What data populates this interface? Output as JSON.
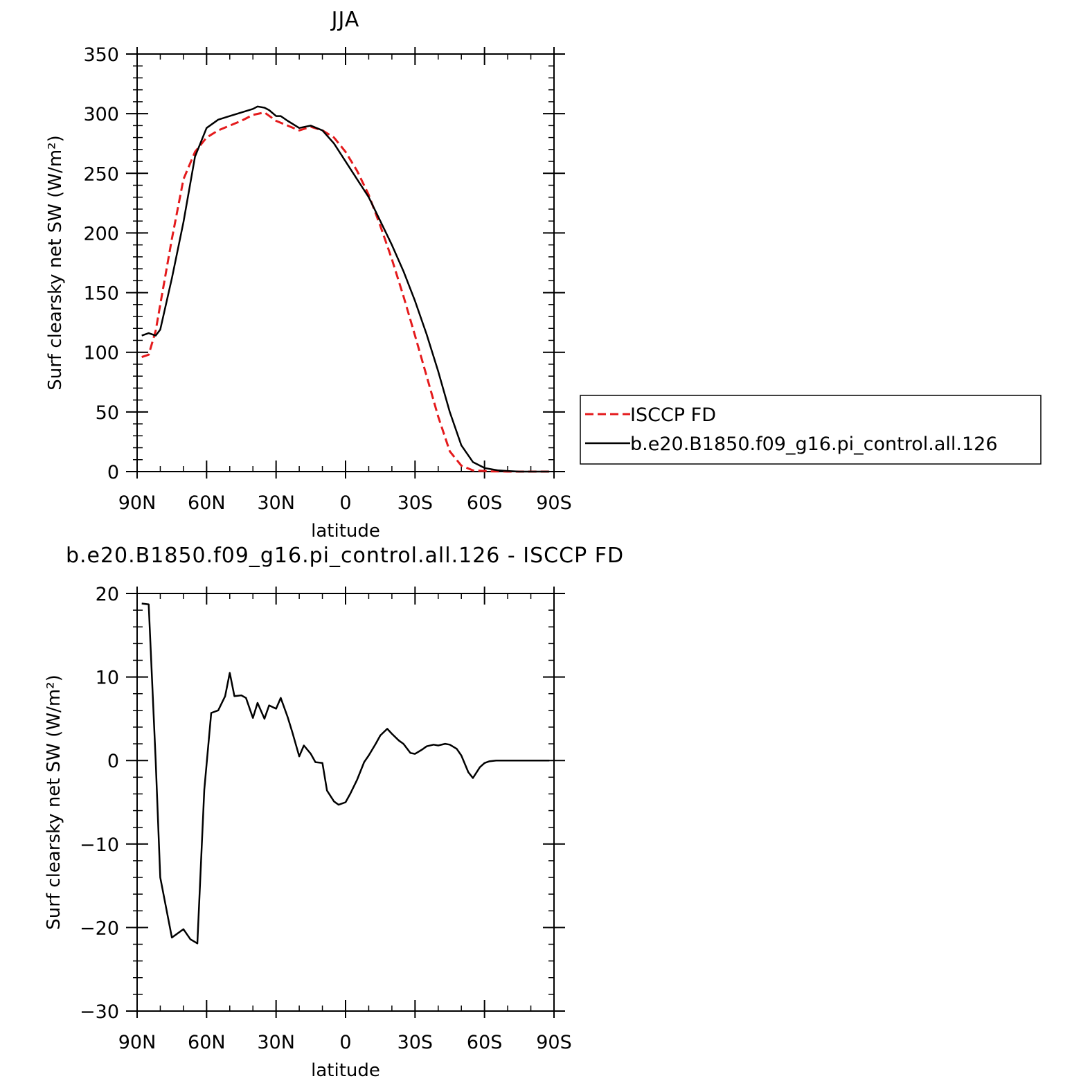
{
  "chart_data": [
    {
      "type": "line",
      "title": "JJA",
      "xlabel": "latitude",
      "ylabel": "Surf clearsky net SW (W/m²)",
      "xlim": [
        90,
        -90
      ],
      "ylim": [
        0,
        350
      ],
      "xticks": [
        90,
        60,
        30,
        0,
        -30,
        -60,
        -90
      ],
      "xtick_labels": [
        "90N",
        "60N",
        "30N",
        "0",
        "30S",
        "60S",
        "90S"
      ],
      "yticks": [
        0,
        50,
        100,
        150,
        200,
        250,
        300,
        350
      ],
      "ytick_labels": [
        "0",
        "50",
        "100",
        "150",
        "200",
        "250",
        "300",
        "350"
      ],
      "legend_placement": "outside-right",
      "series": [
        {
          "name": "ISCCP FD",
          "color": "#e41a1c",
          "dash": "dashed",
          "x": [
            88,
            85,
            82,
            80,
            75,
            70,
            65,
            60,
            55,
            50,
            45,
            40,
            35,
            30,
            25,
            20,
            15,
            10,
            5,
            0,
            -5,
            -10,
            -15,
            -20,
            -25,
            -30,
            -35,
            -40,
            -45,
            -50,
            -55,
            -60,
            -63,
            -66,
            -70,
            -75,
            -80,
            -85,
            -88
          ],
          "values": [
            96,
            98,
            118,
            140,
            195,
            245,
            268,
            280,
            286,
            290,
            294,
            299,
            301,
            294,
            290,
            286,
            289,
            286,
            280,
            268,
            252,
            232,
            206,
            178,
            147,
            114,
            80,
            46,
            17,
            5,
            1,
            0.5,
            0.2,
            0.1,
            0,
            0,
            0,
            0,
            0
          ]
        },
        {
          "name": "b.e20.B1850.f09_g16.pi_control.all.126",
          "color": "#000000",
          "dash": "solid",
          "x": [
            88,
            85,
            82,
            80,
            75,
            70,
            65,
            60,
            55,
            50,
            45,
            40,
            38,
            35,
            33,
            30,
            28,
            25,
            20,
            15,
            10,
            5,
            0,
            -5,
            -10,
            -15,
            -20,
            -25,
            -30,
            -35,
            -40,
            -45,
            -50,
            -55,
            -60,
            -63,
            -66,
            -70,
            -75,
            -80,
            -85,
            -88
          ],
          "values": [
            114,
            116,
            114,
            119,
            162,
            209,
            264,
            288,
            295,
            298,
            301,
            304,
            306,
            305,
            303,
            298,
            298,
            294,
            288,
            290,
            286,
            275,
            260,
            245,
            230,
            210,
            190,
            168,
            143,
            115,
            84,
            50,
            22,
            8,
            3,
            2,
            1,
            0.5,
            0,
            0,
            0,
            0
          ]
        }
      ]
    },
    {
      "type": "line",
      "title": "b.e20.B1850.f09_g16.pi_control.all.126 - ISCCP FD",
      "xlabel": "latitude",
      "ylabel": "Surf clearsky net SW (W/m²)",
      "xlim": [
        90,
        -90
      ],
      "ylim": [
        -30,
        20
      ],
      "xticks": [
        90,
        60,
        30,
        0,
        -30,
        -60,
        -90
      ],
      "xtick_labels": [
        "90N",
        "60N",
        "30N",
        "0",
        "30S",
        "60S",
        "90S"
      ],
      "yticks": [
        -30,
        -20,
        -10,
        0,
        10,
        20
      ],
      "ytick_labels": [
        "−30",
        "−20",
        "−10",
        "0",
        "10",
        "20"
      ],
      "series": [
        {
          "color": "#000000",
          "dash": "solid",
          "x": [
            88,
            85,
            82,
            80,
            75,
            70,
            67,
            64,
            61,
            58,
            55,
            52,
            50,
            48,
            45,
            43,
            40,
            38,
            35,
            33,
            30,
            28,
            25,
            23,
            20,
            18,
            15,
            13,
            10,
            8,
            5,
            3,
            0,
            -2,
            -5,
            -8,
            -10,
            -13,
            -15,
            -18,
            -20,
            -23,
            -25,
            -28,
            -30,
            -33,
            -35,
            -38,
            -40,
            -43,
            -45,
            -48,
            -50,
            -53,
            -55,
            -58,
            -60,
            -62,
            -65,
            -68,
            -70,
            -73,
            -75,
            -78,
            -80,
            -83,
            -85,
            -88
          ],
          "values": [
            18.8,
            18.7,
            0,
            -14,
            -21.2,
            -20.2,
            -21.4,
            -21.9,
            -3.5,
            5.7,
            6.0,
            7.7,
            10.5,
            7.7,
            7.8,
            7.5,
            5.1,
            6.9,
            5.0,
            6.6,
            6.2,
            7.5,
            5.2,
            3.4,
            0.5,
            1.8,
            0.8,
            -0.2,
            -0.3,
            -3.6,
            -4.9,
            -5.3,
            -5.0,
            -4.0,
            -2.3,
            -0.2,
            0.6,
            2.0,
            3.0,
            3.8,
            3.2,
            2.4,
            2.0,
            0.9,
            0.8,
            1.3,
            1.7,
            1.9,
            1.8,
            2.0,
            1.9,
            1.4,
            0.6,
            -1.4,
            -2.1,
            -0.8,
            -0.3,
            -0.1,
            0,
            0,
            0,
            0,
            0,
            0,
            0,
            0,
            0,
            0
          ]
        }
      ]
    }
  ]
}
